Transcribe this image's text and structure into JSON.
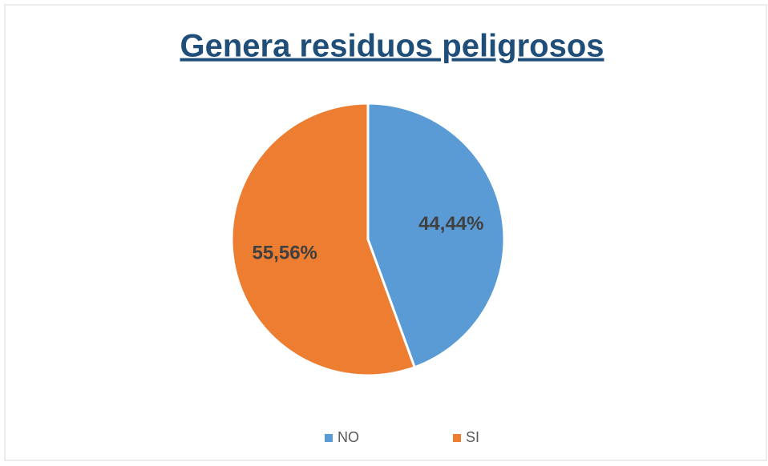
{
  "chart_data": {
    "type": "pie",
    "title": "Genera residuos peligrosos",
    "categories": [
      "NO",
      "SI"
    ],
    "values": [
      44.44,
      55.56
    ],
    "value_labels": [
      "44,44%",
      "55,56%"
    ],
    "colors": [
      "#5b9bd5",
      "#ed7d31"
    ],
    "legend": "bottom"
  }
}
